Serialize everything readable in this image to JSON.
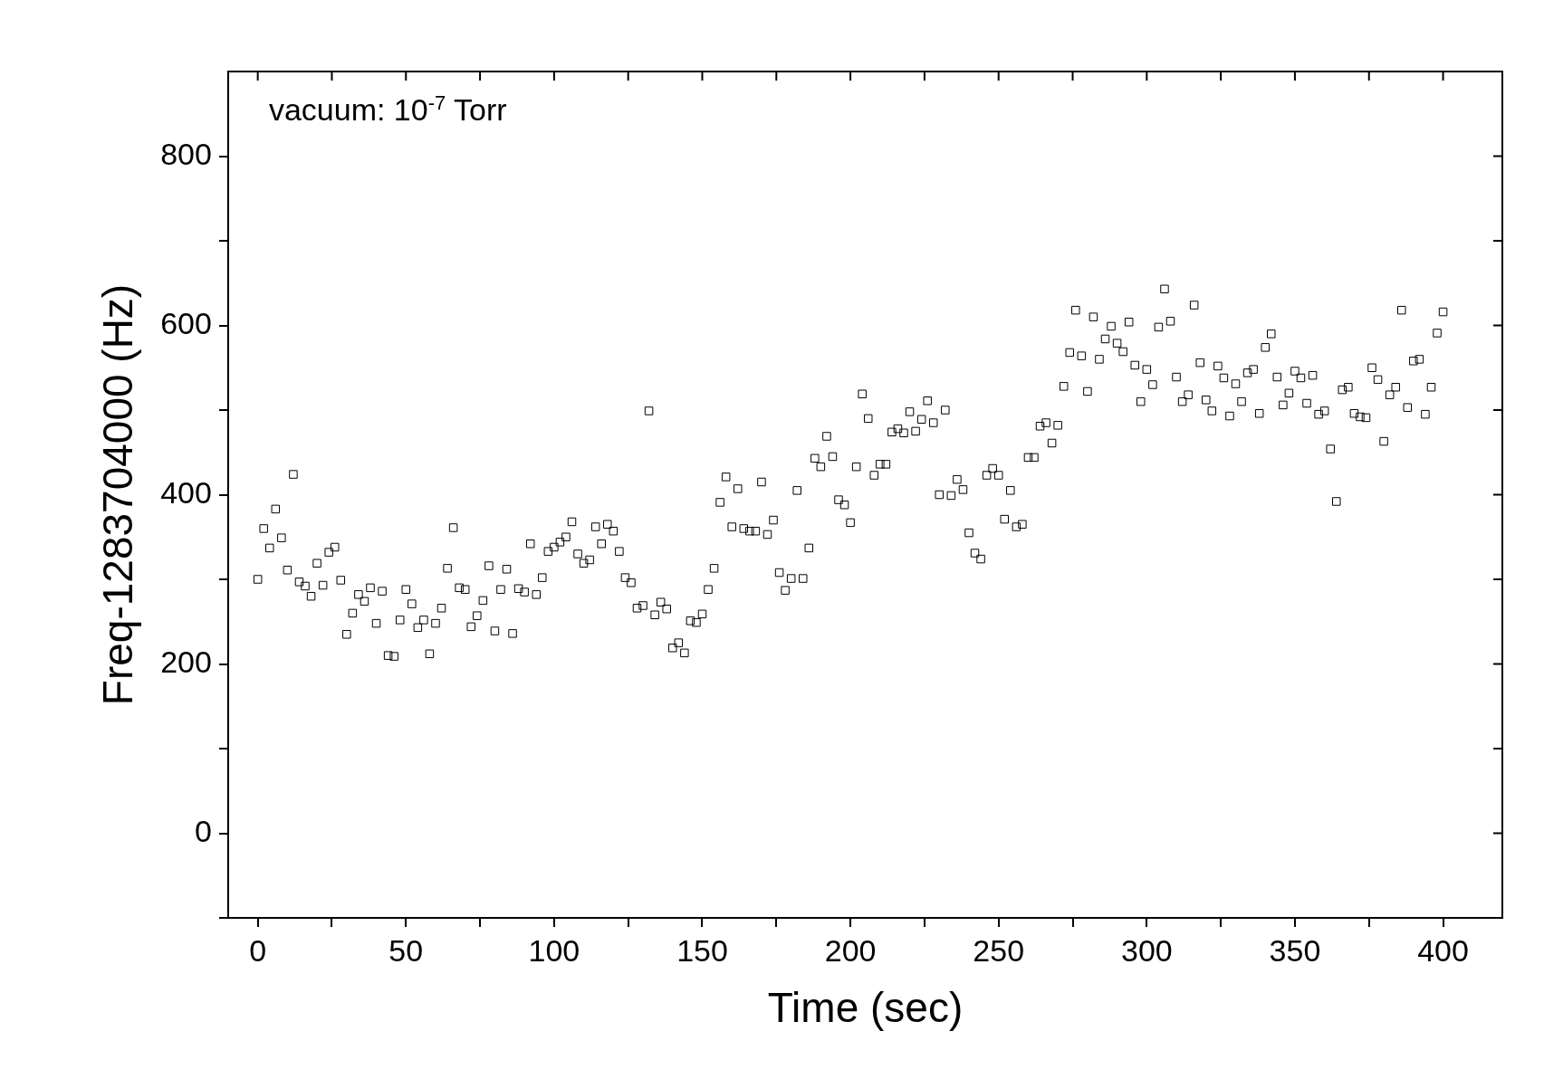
{
  "chart_data": {
    "type": "scatter",
    "xlabel": "Time (sec)",
    "ylabel": "Freq-1283704000 (Hz)",
    "annotations": [
      "vacuum: 10$^{-7}$ Torr"
    ],
    "xlim": [
      -10,
      420
    ],
    "ylim": [
      -100,
      900
    ],
    "xticks": [
      0,
      {
        "value": 25,
        "label": null
      },
      50,
      {
        "value": 75,
        "label": null
      },
      100,
      {
        "value": 125,
        "label": null
      },
      150,
      {
        "value": 175,
        "label": null
      },
      200,
      {
        "value": 225,
        "label": null
      },
      250,
      {
        "value": 275,
        "label": null
      },
      300,
      {
        "value": 325,
        "label": null
      },
      350,
      {
        "value": 375,
        "label": null
      },
      400
    ],
    "yticks": [
      {
        "value": -100,
        "label": null
      },
      0,
      {
        "value": 100,
        "label": null
      },
      200,
      {
        "value": 300,
        "label": null
      },
      400,
      {
        "value": 500,
        "label": null
      },
      600,
      {
        "value": 700,
        "label": null
      },
      800
    ],
    "grid": false,
    "legend": false,
    "marker": "square",
    "x": [
      0,
      2,
      4,
      6,
      8,
      10,
      12,
      14,
      16,
      18,
      20,
      22,
      24,
      26,
      28,
      30,
      32,
      34,
      36,
      38,
      40,
      42,
      44,
      46,
      48,
      50,
      52,
      54,
      56,
      58,
      60,
      62,
      64,
      66,
      68,
      70,
      72,
      74,
      76,
      78,
      80,
      82,
      84,
      86,
      88,
      90,
      92,
      94,
      96,
      98,
      100,
      102,
      104,
      106,
      108,
      110,
      112,
      114,
      116,
      118,
      120,
      122,
      124,
      126,
      128,
      130,
      132,
      134,
      136,
      138,
      140,
      142,
      144,
      146,
      148,
      150,
      152,
      154,
      156,
      158,
      160,
      162,
      164,
      166,
      168,
      170,
      172,
      174,
      176,
      178,
      180,
      182,
      184,
      186,
      188,
      190,
      192,
      194,
      196,
      198,
      200,
      202,
      204,
      206,
      208,
      210,
      212,
      214,
      216,
      218,
      220,
      222,
      224,
      226,
      228,
      230,
      232,
      234,
      236,
      238,
      240,
      242,
      244,
      246,
      248,
      250,
      252,
      254,
      256,
      258,
      260,
      262,
      264,
      266,
      268,
      270,
      272,
      274,
      276,
      278,
      280,
      282,
      284,
      286,
      288,
      290,
      292,
      294,
      296,
      298,
      300,
      302,
      304,
      306,
      308,
      310,
      312,
      314,
      316,
      318,
      320,
      322,
      324,
      326,
      328,
      330,
      332,
      334,
      336,
      338,
      340,
      342,
      344,
      346,
      348,
      350,
      352,
      354,
      356,
      358,
      360,
      362,
      364,
      366,
      368,
      370,
      372,
      374,
      376,
      378,
      380,
      382,
      384,
      386,
      388,
      390,
      392,
      394,
      396,
      398,
      400
    ],
    "series": [
      {
        "color": "#000000",
        "values": [
          300,
          360,
          337,
          383,
          349,
          311,
          424,
          297,
          292,
          280,
          319,
          293,
          332,
          338,
          299,
          235,
          260,
          282,
          274,
          290,
          248,
          286,
          210,
          209,
          252,
          288,
          271,
          243,
          252,
          212,
          248,
          266,
          313,
          361,
          290,
          288,
          244,
          257,
          275,
          316,
          239,
          288,
          312,
          236,
          289,
          285,
          342,
          282,
          302,
          333,
          338,
          344,
          350,
          368,
          330,
          319,
          323,
          362,
          342,
          365,
          357,
          333,
          302,
          296,
          266,
          269,
          499,
          258,
          273,
          265,
          219,
          225,
          213,
          251,
          249,
          259,
          288,
          313,
          391,
          421,
          362,
          407,
          360,
          357,
          357,
          415,
          353,
          370,
          308,
          287,
          301,
          405,
          301,
          337,
          443,
          433,
          469,
          445,
          394,
          388,
          367,
          433,
          519,
          490,
          423,
          436,
          436,
          474,
          478,
          473,
          498,
          475,
          489,
          511,
          485,
          400,
          500,
          399,
          418,
          406,
          355,
          331,
          324,
          423,
          431,
          423,
          371,
          405,
          362,
          365,
          444,
          444,
          481,
          485,
          461,
          482,
          528,
          568,
          618,
          564,
          522,
          610,
          560,
          584,
          599,
          579,
          569,
          604,
          553,
          510,
          548,
          530,
          598,
          643,
          605,
          539,
          510,
          518,
          624,
          556,
          512,
          499,
          552,
          538,
          493,
          531,
          510,
          544,
          548,
          496,
          574,
          590,
          539,
          506,
          520,
          546,
          538,
          508,
          541,
          495,
          499,
          454,
          392,
          524,
          527,
          496,
          492,
          491,
          550,
          536,
          463,
          518,
          527,
          618,
          503,
          558,
          560,
          495,
          527,
          591,
          616
        ]
      }
    ]
  }
}
